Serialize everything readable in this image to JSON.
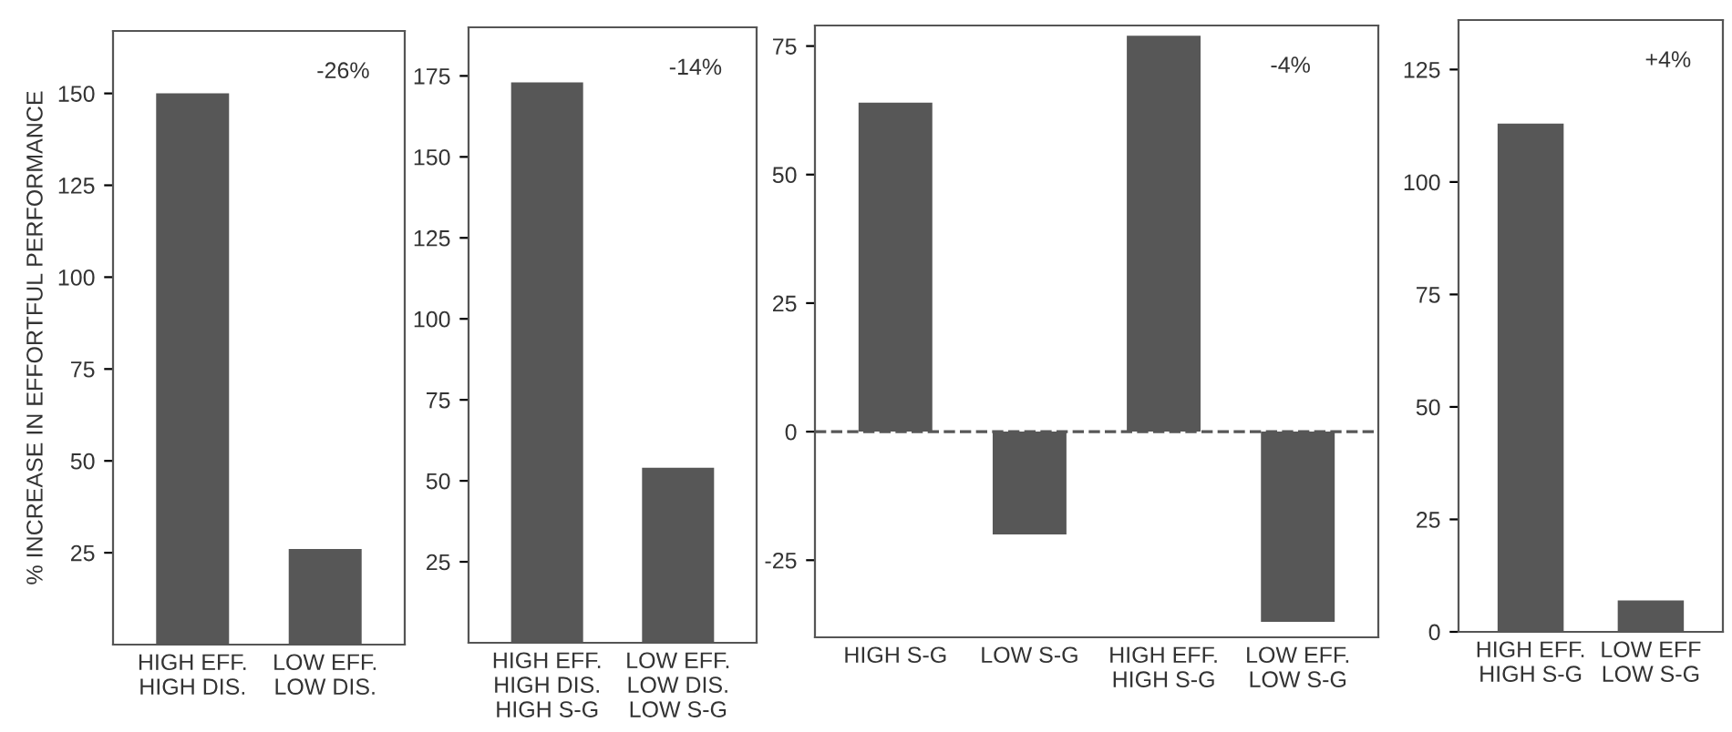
{
  "chart_data": [
    {
      "type": "bar",
      "ylabel": "% INCREASE IN EFFORTFUL PERFORMANCE",
      "categories": [
        "HIGH EFF.\nHIGH DIS.",
        "LOW EFF.\nLOW DIS."
      ],
      "values": [
        150,
        26
      ],
      "color": "#575757",
      "ylim": [
        0,
        167
      ],
      "yticks": [
        25,
        50,
        75,
        100,
        125,
        150
      ],
      "annotations": [
        "-26%"
      ],
      "grid": false
    },
    {
      "type": "bar",
      "categories": [
        "HIGH EFF.\nHIGH DIS.\nHIGH S-G",
        "LOW EFF.\nLOW DIS.\nLOW S-G"
      ],
      "values": [
        173,
        54
      ],
      "color": "#575757",
      "ylim": [
        0,
        190
      ],
      "yticks": [
        25,
        50,
        75,
        100,
        125,
        150,
        175
      ],
      "annotations": [
        "-14%"
      ],
      "grid": false
    },
    {
      "type": "bar",
      "categories": [
        "HIGH S-G",
        "LOW S-G",
        "HIGH EFF.\nHIGH S-G",
        "LOW EFF.\nLOW S-G"
      ],
      "values": [
        64,
        -20,
        77,
        -37
      ],
      "color": "#575757",
      "ylim": [
        -40,
        79
      ],
      "yticks": [
        -25,
        0,
        25,
        50,
        75
      ],
      "annotations": [
        "-4%"
      ],
      "ref_lines": [
        {
          "axis": "y",
          "value": 0,
          "line_style": "dashed",
          "color": "#575757"
        }
      ],
      "grid": false
    },
    {
      "type": "bar",
      "categories": [
        "HIGH EFF.\nHIGH S-G",
        "LOW EFF\nLOW S-G"
      ],
      "values": [
        113,
        7
      ],
      "color": "#575757",
      "ylim": [
        0,
        136
      ],
      "yticks": [
        0,
        25,
        50,
        75,
        100,
        125
      ],
      "annotations": [
        "+4%"
      ],
      "grid": false
    }
  ]
}
